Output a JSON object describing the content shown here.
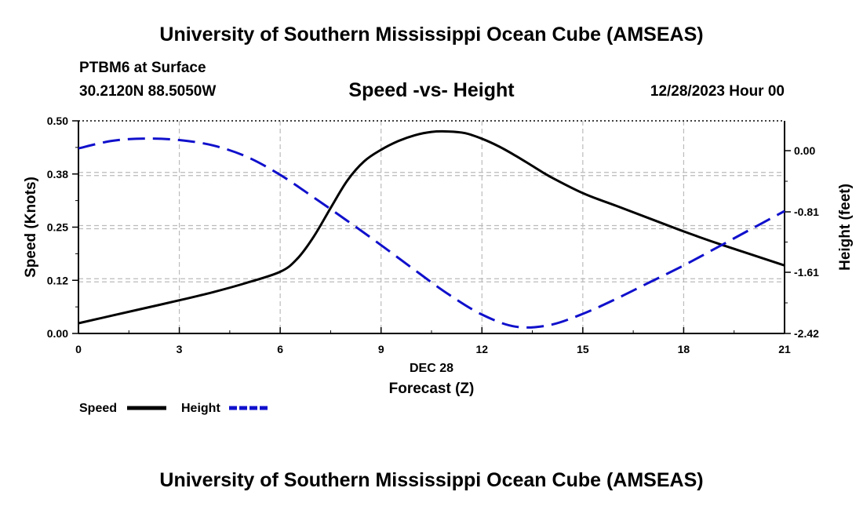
{
  "header": {
    "title": "University of Southern Mississippi Ocean Cube (AMSEAS)",
    "station": "PTBM6 at Surface",
    "coordinates": "30.2120N  88.5050W",
    "subtitle": "Speed -vs- Height",
    "datetime": "12/28/2023 Hour 00"
  },
  "footer": {
    "title": "University of Southern Mississippi Ocean Cube (AMSEAS)"
  },
  "chart_data": {
    "type": "line",
    "title": "Speed -vs- Height",
    "x_tick_labels": [
      "0",
      "3",
      "6",
      "9",
      "12",
      "15",
      "18",
      "21"
    ],
    "x_ticks": [
      0,
      3,
      6,
      9,
      12,
      15,
      18,
      21
    ],
    "xlim": [
      0,
      21
    ],
    "xlabel_line1": "DEC 28",
    "xlabel_line2": "Forecast (Z)",
    "ylabel_left": "Speed (Knots)",
    "ylabel_right": "Height (feet)",
    "ylim_left": [
      0,
      0.5
    ],
    "ylim_right": [
      -2.42,
      0.395
    ],
    "left_tick_values": [
      0,
      0.125,
      0.25,
      0.375,
      0.5
    ],
    "left_tick_labels": [
      "0.00",
      "0.12",
      "0.25",
      "0.38",
      "0.50"
    ],
    "right_tick_values": [
      -2.42,
      -1.61,
      -0.81,
      0.0
    ],
    "right_tick_labels": [
      "-2.42",
      "-1.61",
      "-0.81",
      "0.00"
    ],
    "grid": true,
    "series": [
      {
        "name": "Speed",
        "axis": "left",
        "color": "#000000",
        "dashed": false,
        "x": [
          0,
          1,
          2,
          3,
          4,
          5,
          6,
          6.5,
          7,
          7.5,
          8,
          8.5,
          9,
          9.5,
          10,
          10.5,
          11,
          11.5,
          12,
          12.5,
          13,
          13.5,
          14,
          15,
          16,
          17,
          18,
          19,
          20,
          21
        ],
        "values": [
          0.024,
          0.042,
          0.06,
          0.078,
          0.097,
          0.119,
          0.145,
          0.175,
          0.228,
          0.295,
          0.36,
          0.405,
          0.432,
          0.452,
          0.466,
          0.474,
          0.475,
          0.471,
          0.458,
          0.44,
          0.418,
          0.394,
          0.37,
          0.33,
          0.3,
          0.27,
          0.24,
          0.212,
          0.186,
          0.16
        ]
      },
      {
        "name": "Height",
        "axis": "right",
        "color": "#1010cc",
        "dashed": true,
        "x": [
          0,
          1,
          2,
          3,
          4,
          5,
          6,
          7,
          8,
          9,
          10,
          11,
          12,
          13,
          14,
          15,
          16,
          17,
          18,
          19,
          20,
          21
        ],
        "values": [
          0.03,
          0.13,
          0.16,
          0.14,
          0.07,
          -0.08,
          -0.32,
          -0.62,
          -0.93,
          -1.25,
          -1.58,
          -1.9,
          -2.17,
          -2.33,
          -2.31,
          -2.16,
          -1.96,
          -1.74,
          -1.52,
          -1.28,
          -1.04,
          -0.8
        ]
      }
    ],
    "legend": [
      {
        "label": "Speed",
        "color": "#000000",
        "dashed": false
      },
      {
        "label": "Height",
        "color": "#1010cc",
        "dashed": true
      }
    ]
  }
}
